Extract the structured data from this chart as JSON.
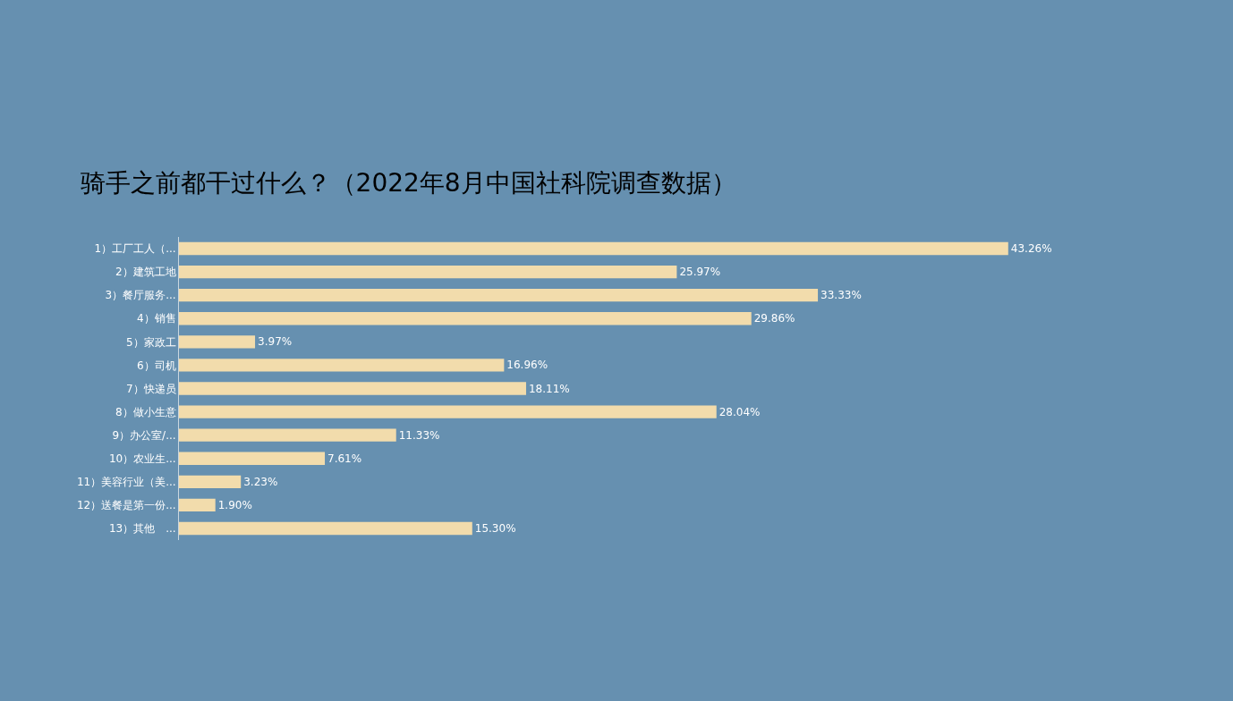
{
  "chart_data": {
    "type": "bar",
    "orientation": "horizontal",
    "title": "骑手之前都干过什么？（2022年8月中国社科院调查数据）",
    "categories": [
      "1）工厂工人（...",
      "2）建筑工地",
      "3）餐厅服务...",
      "4）销售",
      "5）家政工",
      "6）司机",
      "7）快递员",
      "8）做小生意",
      "9）办公室/...",
      "10）农业生...",
      "11）美容行业（美...",
      "12）送餐是第一份...",
      "13）其他　..."
    ],
    "values": [
      43.26,
      25.97,
      33.33,
      29.86,
      3.97,
      16.96,
      18.11,
      28.04,
      11.33,
      7.61,
      3.23,
      1.9,
      15.3
    ],
    "value_labels": [
      "43.26%",
      "25.97%",
      "33.33%",
      "29.86%",
      "3.97%",
      "16.96%",
      "18.11%",
      "28.04%",
      "11.33%",
      "7.61%",
      "3.23%",
      "1.90%",
      "15.30%"
    ],
    "color": "#f2dcac",
    "tick_labels": "y",
    "grid": false,
    "legend": false
  }
}
